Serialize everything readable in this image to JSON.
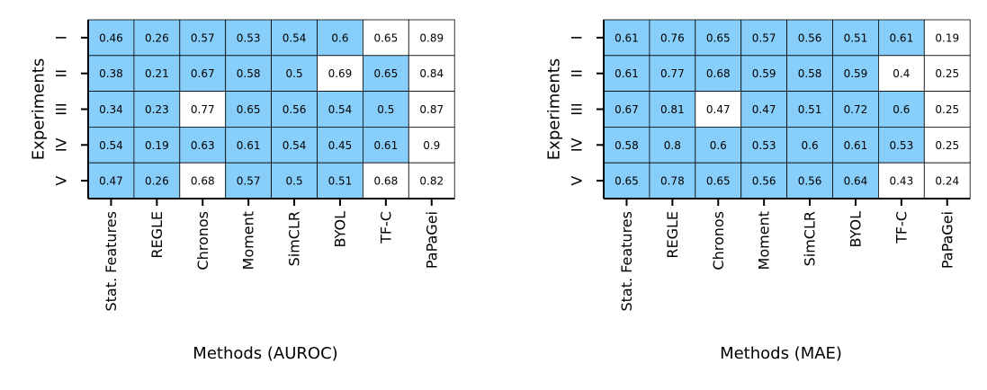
{
  "colors": {
    "highlight": "#87CEFA",
    "plain": "#ffffff",
    "grid": "#000000"
  },
  "chart_data": [
    {
      "type": "heatmap",
      "title": "",
      "xlabel": "Methods (AUROC)",
      "ylabel": "Experiments",
      "categories": [
        "Stat. Features",
        "REGLE",
        "Chronos",
        "Moment",
        "SimCLR",
        "BYOL",
        "TF-C",
        "PaPaGei"
      ],
      "rows": [
        "I",
        "II",
        "III",
        "IV",
        "V"
      ],
      "values": [
        [
          0.46,
          0.26,
          0.57,
          0.53,
          0.54,
          0.6,
          0.65,
          0.89
        ],
        [
          0.38,
          0.21,
          0.67,
          0.58,
          0.5,
          0.69,
          0.65,
          0.84
        ],
        [
          0.34,
          0.23,
          0.77,
          0.65,
          0.56,
          0.54,
          0.5,
          0.87
        ],
        [
          0.54,
          0.19,
          0.63,
          0.61,
          0.54,
          0.45,
          0.61,
          0.9
        ],
        [
          0.47,
          0.26,
          0.68,
          0.57,
          0.5,
          0.51,
          0.68,
          0.82
        ]
      ],
      "highlighted": [
        [
          1,
          1,
          1,
          1,
          1,
          1,
          0,
          0
        ],
        [
          1,
          1,
          1,
          1,
          1,
          0,
          1,
          0
        ],
        [
          1,
          1,
          0,
          1,
          1,
          1,
          1,
          0
        ],
        [
          1,
          1,
          1,
          1,
          1,
          1,
          1,
          0
        ],
        [
          1,
          1,
          0,
          1,
          1,
          1,
          0,
          0
        ]
      ]
    },
    {
      "type": "heatmap",
      "title": "",
      "xlabel": "Methods (MAE)",
      "ylabel": "Experiments",
      "categories": [
        "Stat. Features",
        "REGLE",
        "Chronos",
        "Moment",
        "SimCLR",
        "BYOL",
        "TF-C",
        "PaPaGei"
      ],
      "rows": [
        "I",
        "II",
        "III",
        "IV",
        "V"
      ],
      "values": [
        [
          0.61,
          0.76,
          0.65,
          0.57,
          0.56,
          0.51,
          0.61,
          0.19
        ],
        [
          0.61,
          0.77,
          0.68,
          0.59,
          0.58,
          0.59,
          0.4,
          0.25
        ],
        [
          0.67,
          0.81,
          0.47,
          0.47,
          0.51,
          0.72,
          0.6,
          0.25
        ],
        [
          0.58,
          0.8,
          0.6,
          0.53,
          0.6,
          0.61,
          0.53,
          0.25
        ],
        [
          0.65,
          0.78,
          0.65,
          0.56,
          0.56,
          0.64,
          0.43,
          0.24
        ]
      ],
      "highlighted": [
        [
          1,
          1,
          1,
          1,
          1,
          1,
          1,
          0
        ],
        [
          1,
          1,
          1,
          1,
          1,
          1,
          0,
          0
        ],
        [
          1,
          1,
          0,
          1,
          1,
          1,
          1,
          0
        ],
        [
          1,
          1,
          1,
          1,
          1,
          1,
          1,
          0
        ],
        [
          1,
          1,
          1,
          1,
          1,
          1,
          0,
          0
        ]
      ]
    }
  ]
}
